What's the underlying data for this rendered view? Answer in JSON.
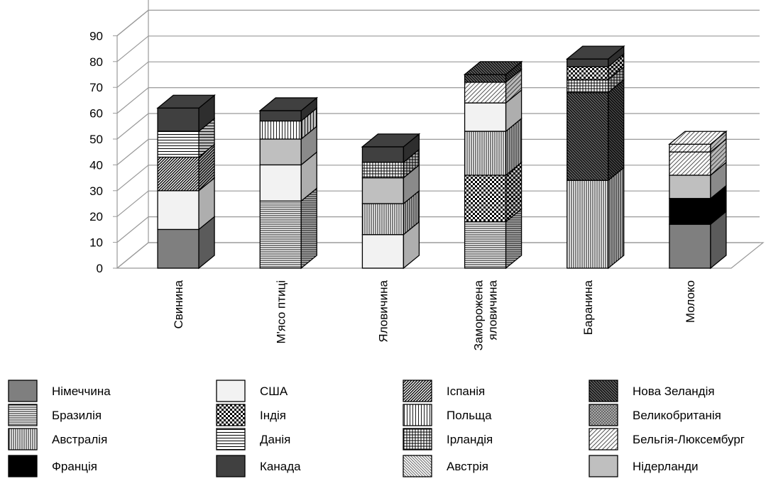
{
  "chart_data": {
    "type": "bar",
    "stacked": true,
    "three_d": true,
    "title": "",
    "xlabel": "",
    "ylabel": "",
    "ylim": [
      0,
      90
    ],
    "yticks": [
      0,
      10,
      20,
      30,
      40,
      50,
      60,
      70,
      80,
      90
    ],
    "grid": true,
    "legend_position": "bottom",
    "categories": [
      "Свинина",
      "М'ясо птиці",
      "Яловичина",
      "Заморожена яловичина",
      "Баранина",
      "Молоко"
    ],
    "legend": [
      {
        "name": "Німеччина",
        "pattern": "solid-gray"
      },
      {
        "name": "США",
        "pattern": "solid-white"
      },
      {
        "name": "Іспанія",
        "pattern": "diag-dense"
      },
      {
        "name": "Нова Зеландія",
        "pattern": "diag-dark"
      },
      {
        "name": "Бразилія",
        "pattern": "horizontal"
      },
      {
        "name": "Індія",
        "pattern": "checker-fine"
      },
      {
        "name": "Польща",
        "pattern": "vertical-light"
      },
      {
        "name": "Великобританія",
        "pattern": "diag-cross"
      },
      {
        "name": "Австралія",
        "pattern": "vertical"
      },
      {
        "name": "Данія",
        "pattern": "horizontal-wide"
      },
      {
        "name": "Ірландія",
        "pattern": "grid"
      },
      {
        "name": "Бельгія-Люксембург",
        "pattern": "diag-light"
      },
      {
        "name": "Франція",
        "pattern": "solid-black"
      },
      {
        "name": "Канада",
        "pattern": "solid-dark"
      },
      {
        "name": "Австрія",
        "pattern": "diag-medium"
      },
      {
        "name": "Нідерланди",
        "pattern": "solid-lightgray"
      }
    ],
    "stacks": [
      [
        {
          "series": "Німеччина",
          "value": 15
        },
        {
          "series": "США",
          "value": 15
        },
        {
          "series": "Іспанія",
          "value": 13
        },
        {
          "series": "Данія",
          "value": 10
        },
        {
          "series": "Канада",
          "value": 9
        }
      ],
      [
        {
          "series": "Бразилія",
          "value": 26
        },
        {
          "series": "США",
          "value": 14
        },
        {
          "series": "Нідерланди",
          "value": 10
        },
        {
          "series": "Польща",
          "value": 7
        },
        {
          "series": "Канада",
          "value": 4
        }
      ],
      [
        {
          "series": "США",
          "value": 13
        },
        {
          "series": "Австралія",
          "value": 12
        },
        {
          "series": "Нідерланди",
          "value": 10
        },
        {
          "series": "Ірландія",
          "value": 6
        },
        {
          "series": "Канада",
          "value": 6
        }
      ],
      [
        {
          "series": "Бразилія",
          "value": 18
        },
        {
          "series": "Індія",
          "value": 18
        },
        {
          "series": "Австралія",
          "value": 17
        },
        {
          "series": "США",
          "value": 11
        },
        {
          "series": "Бельгія-Люксембург",
          "value": 8
        },
        {
          "series": "Нова Зеландія",
          "value": 3
        }
      ],
      [
        {
          "series": "Австралія",
          "value": 34
        },
        {
          "series": "Нова Зеландія",
          "value": 34
        },
        {
          "series": "Ірландія",
          "value": 5
        },
        {
          "series": "Індія",
          "value": 5
        },
        {
          "series": "Канада",
          "value": 3
        }
      ],
      [
        {
          "series": "Німеччина",
          "value": 17
        },
        {
          "series": "Франція",
          "value": 10
        },
        {
          "series": "Нідерланди",
          "value": 9
        },
        {
          "series": "Бельгія-Люксембург",
          "value": 9
        },
        {
          "series": "Бельгія-Люксембург",
          "value": 3
        }
      ]
    ]
  }
}
